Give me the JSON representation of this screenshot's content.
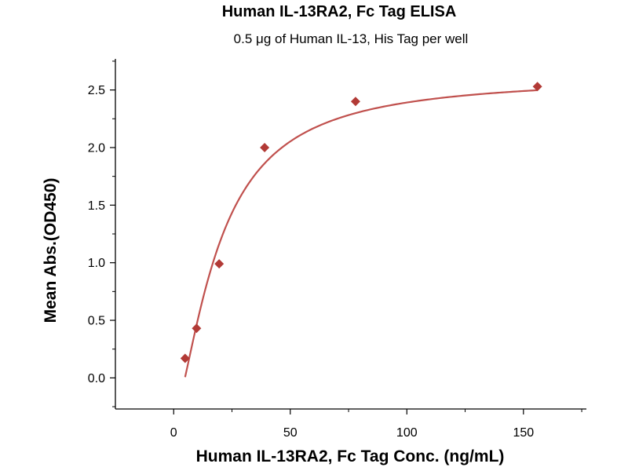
{
  "chart_data": {
    "type": "scatter",
    "title": "Human IL-13RA2, Fc Tag ELISA",
    "subtitle": "0.5 μg of Human IL-13, His Tag per well",
    "xlabel": "Human IL-13RA2, Fc Tag Conc. (ng/mL)",
    "ylabel": "Mean Abs.(OD450)",
    "xlim": [
      -25,
      177
    ],
    "ylim": [
      -0.27,
      2.77
    ],
    "x_ticks": [
      0,
      50,
      100,
      150
    ],
    "x_tick_labels": [
      "0",
      "50",
      "100",
      "150"
    ],
    "y_ticks": [
      0.0,
      0.5,
      1.0,
      1.5,
      2.0,
      2.5
    ],
    "y_tick_labels": [
      "0.0",
      "0.5",
      "1.0",
      "1.5",
      "2.0",
      "2.5"
    ],
    "grid": false,
    "legend": "none",
    "marker_color": "#b23a36",
    "curve_color": "#c0504d",
    "series": [
      {
        "marker": "diamond",
        "points": [
          {
            "x": 4.9,
            "y": 0.17
          },
          {
            "x": 9.8,
            "y": 0.43
          },
          {
            "x": 19.5,
            "y": 0.99
          },
          {
            "x": 39.0,
            "y": 2.0
          },
          {
            "x": 78.0,
            "y": 2.4
          },
          {
            "x": 156.0,
            "y": 2.53
          }
        ]
      }
    ],
    "fit_curve": {
      "model": "4PL",
      "bottom": -0.33,
      "top": 2.62,
      "ec50": 19.2,
      "hill": 1.5,
      "x_range": [
        4.9,
        156.0
      ]
    }
  }
}
